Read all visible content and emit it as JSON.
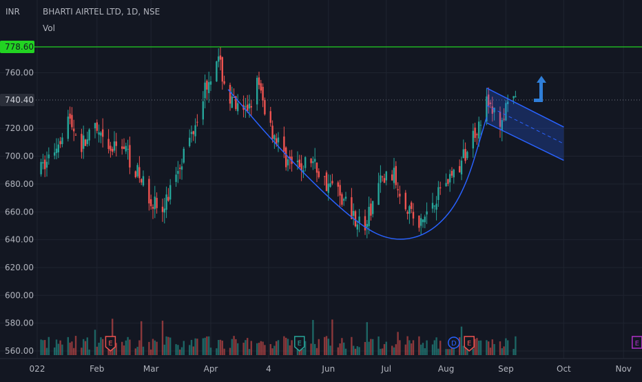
{
  "header": {
    "currency": "INR",
    "symbol_line": "BHARTI AIRTEL LTD, 1D, NSE",
    "volume_label": "Vol"
  },
  "price_badges": {
    "resistance_value": "778.60",
    "last_price_value": "740.40"
  },
  "colors": {
    "background": "#131722",
    "grid": "#1f2430",
    "axis_text": "#b2b5be",
    "up_candle": "#26a69a",
    "down_candle": "#ef5350",
    "resistance_line": "#22d322",
    "cup_curve": "#2962ff",
    "channel_fill": "#2962ff",
    "arrow": "#2f7ed8",
    "earnings_marker": "#ef5350",
    "earnings_marker_alt": "#26a69a",
    "dividend_marker": "#2962ff",
    "future_earnings_marker": "#b030c8"
  },
  "markers": {
    "earnings": "E",
    "dividend": "D"
  },
  "chart_data": {
    "type": "candlestick",
    "y_ticks": [
      "760.00",
      "720.00",
      "700.00",
      "680.00",
      "660.00",
      "640.00",
      "620.00",
      "600.00",
      "580.00",
      "560.00"
    ],
    "x_ticks": [
      "022",
      "Feb",
      "Mar",
      "Apr",
      "4",
      "Jun",
      "Jul",
      "Aug",
      "Sep",
      "Oct",
      "Nov"
    ],
    "ylim": [
      560,
      790
    ],
    "x_range": [
      "2022-01-01",
      "2022-11-20"
    ],
    "resistance_level": 778.6,
    "last_price": 740.4,
    "weekly_closes": [
      [
        "2022-01-03",
        690
      ],
      [
        "2022-01-10",
        705
      ],
      [
        "2022-01-17",
        728
      ],
      [
        "2022-01-24",
        708
      ],
      [
        "2022-01-31",
        718
      ],
      [
        "2022-02-07",
        702
      ],
      [
        "2022-02-14",
        710
      ],
      [
        "2022-02-21",
        690
      ],
      [
        "2022-02-28",
        672
      ],
      [
        "2022-03-07",
        658
      ],
      [
        "2022-03-14",
        690
      ],
      [
        "2022-03-21",
        712
      ],
      [
        "2022-03-28",
        745
      ],
      [
        "2022-04-04",
        772
      ],
      [
        "2022-04-11",
        740
      ],
      [
        "2022-04-18",
        728
      ],
      [
        "2022-04-25",
        752
      ],
      [
        "2022-05-02",
        722
      ],
      [
        "2022-05-09",
        700
      ],
      [
        "2022-05-16",
        690
      ],
      [
        "2022-05-23",
        698
      ],
      [
        "2022-05-30",
        682
      ],
      [
        "2022-06-06",
        675
      ],
      [
        "2022-06-13",
        660
      ],
      [
        "2022-06-20",
        648
      ],
      [
        "2022-06-27",
        680
      ],
      [
        "2022-07-04",
        688
      ],
      [
        "2022-07-11",
        668
      ],
      [
        "2022-07-18",
        648
      ],
      [
        "2022-07-25",
        668
      ],
      [
        "2022-08-01",
        683
      ],
      [
        "2022-08-08",
        692
      ],
      [
        "2022-08-15",
        715
      ],
      [
        "2022-08-22",
        738
      ],
      [
        "2022-08-29",
        725
      ],
      [
        "2022-09-05",
        740
      ]
    ],
    "cup_curve_points": [
      [
        "2022-04-10",
        748
      ],
      [
        "2022-05-10",
        700
      ],
      [
        "2022-06-15",
        652
      ],
      [
        "2022-07-05",
        638
      ],
      [
        "2022-07-25",
        645
      ],
      [
        "2022-08-10",
        672
      ],
      [
        "2022-08-22",
        728
      ]
    ],
    "channel": {
      "start": "2022-08-22",
      "end": "2022-10-01",
      "upper": [
        749,
        721
      ],
      "lower": [
        724,
        697
      ]
    },
    "event_markers": [
      {
        "date": "2022-02-08",
        "kind": "earnings",
        "label": "E"
      },
      {
        "date": "2022-05-17",
        "kind": "earnings",
        "label": "E"
      },
      {
        "date": "2022-08-05",
        "kind": "dividend",
        "label": "D"
      },
      {
        "date": "2022-08-13",
        "kind": "earnings",
        "label": "E"
      },
      {
        "date": "2022-11-08",
        "kind": "earnings_future",
        "label": "E"
      }
    ]
  }
}
